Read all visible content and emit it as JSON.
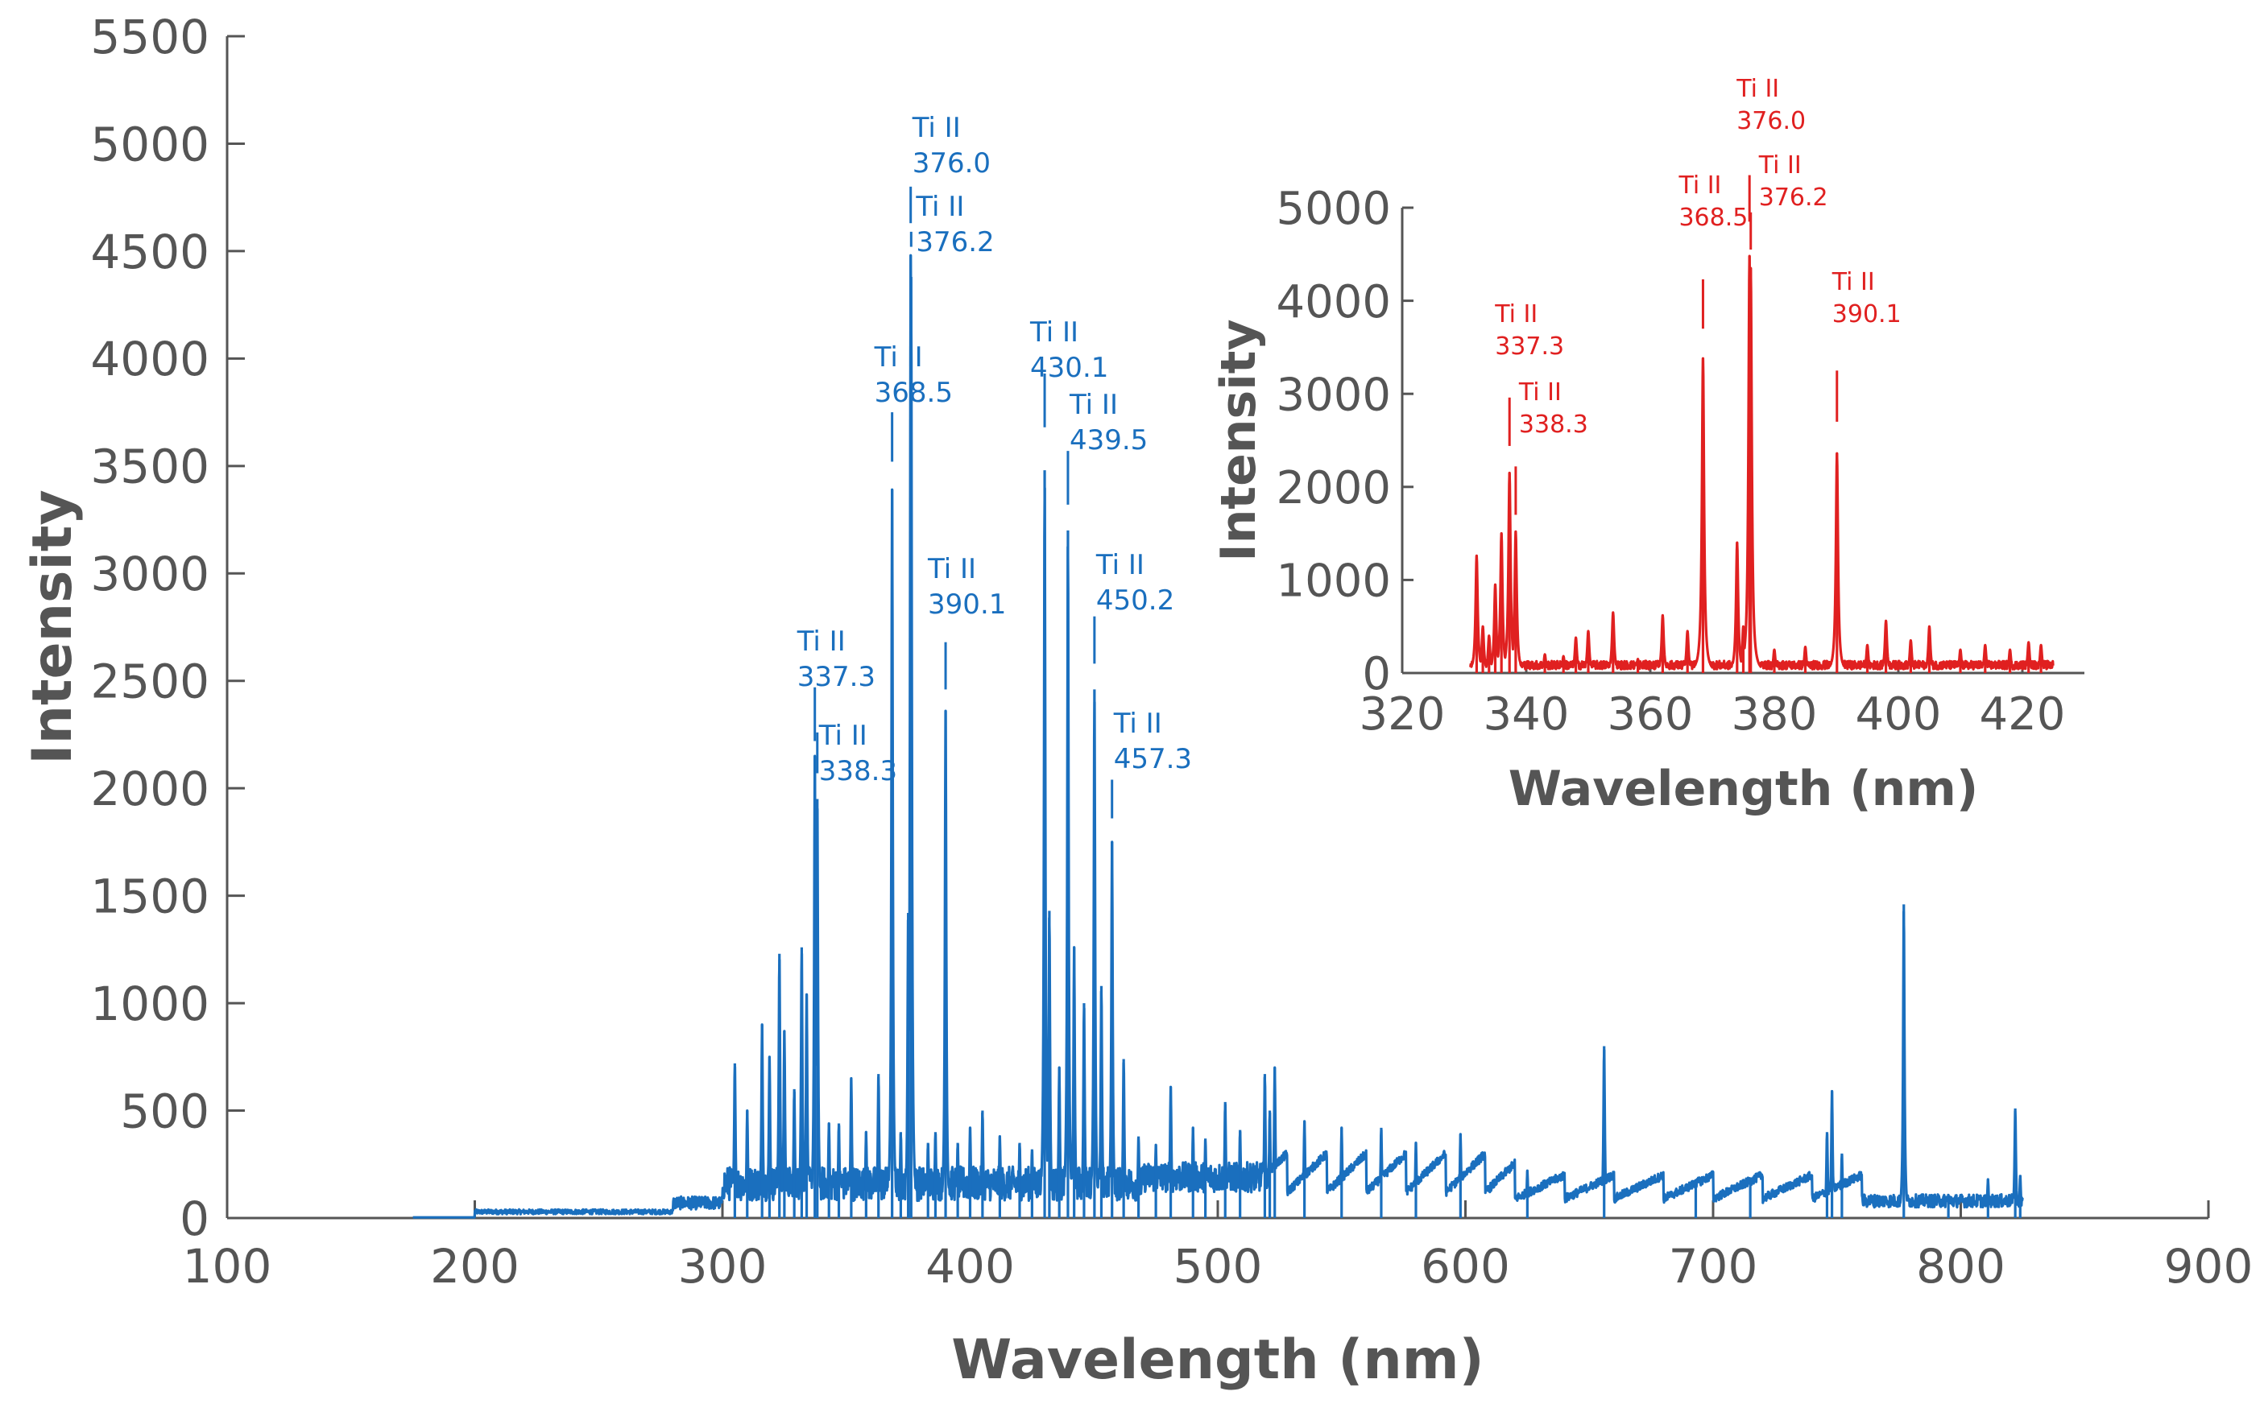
{
  "chart_data": [
    {
      "id": "main",
      "type": "line",
      "title": "",
      "xlabel": "Wavelength (nm)",
      "ylabel": "Intensity",
      "xlim": [
        100,
        900
      ],
      "ylim": [
        0,
        5500
      ],
      "xticks": [
        100,
        200,
        300,
        400,
        500,
        600,
        700,
        800,
        900
      ],
      "yticks": [
        0,
        500,
        1000,
        1500,
        2000,
        2500,
        3000,
        3500,
        4000,
        4500,
        5000,
        5500
      ],
      "color": "#1a6fbe",
      "data_range": [
        175,
        825
      ],
      "peaks": [
        {
          "x": 305,
          "y": 720
        },
        {
          "x": 310,
          "y": 500
        },
        {
          "x": 316,
          "y": 900
        },
        {
          "x": 319,
          "y": 750
        },
        {
          "x": 323,
          "y": 1230
        },
        {
          "x": 325,
          "y": 870
        },
        {
          "x": 329,
          "y": 600
        },
        {
          "x": 332,
          "y": 1260
        },
        {
          "x": 334,
          "y": 1040
        },
        {
          "x": 337.3,
          "y": 2150
        },
        {
          "x": 338.3,
          "y": 1950
        },
        {
          "x": 343,
          "y": 440
        },
        {
          "x": 347,
          "y": 440
        },
        {
          "x": 352,
          "y": 650
        },
        {
          "x": 358,
          "y": 400
        },
        {
          "x": 363,
          "y": 670
        },
        {
          "x": 368.5,
          "y": 3390
        },
        {
          "x": 372,
          "y": 400
        },
        {
          "x": 375,
          "y": 1420
        },
        {
          "x": 376.0,
          "y": 4480
        },
        {
          "x": 376.2,
          "y": 4380
        },
        {
          "x": 383,
          "y": 350
        },
        {
          "x": 386,
          "y": 400
        },
        {
          "x": 390.1,
          "y": 2360
        },
        {
          "x": 395,
          "y": 350
        },
        {
          "x": 400,
          "y": 420
        },
        {
          "x": 405,
          "y": 500
        },
        {
          "x": 412,
          "y": 380
        },
        {
          "x": 420,
          "y": 350
        },
        {
          "x": 425,
          "y": 320
        },
        {
          "x": 430.1,
          "y": 3480
        },
        {
          "x": 432,
          "y": 1430
        },
        {
          "x": 436,
          "y": 700
        },
        {
          "x": 439.5,
          "y": 3200
        },
        {
          "x": 442,
          "y": 1260
        },
        {
          "x": 446,
          "y": 1000
        },
        {
          "x": 450.2,
          "y": 2460
        },
        {
          "x": 453,
          "y": 1080
        },
        {
          "x": 457.3,
          "y": 1750
        },
        {
          "x": 462,
          "y": 740
        },
        {
          "x": 468,
          "y": 380
        },
        {
          "x": 475,
          "y": 340
        },
        {
          "x": 481,
          "y": 610
        },
        {
          "x": 490,
          "y": 420
        },
        {
          "x": 495,
          "y": 370
        },
        {
          "x": 503,
          "y": 540
        },
        {
          "x": 509,
          "y": 410
        },
        {
          "x": 519,
          "y": 670
        },
        {
          "x": 521,
          "y": 500
        },
        {
          "x": 523,
          "y": 700
        },
        {
          "x": 535,
          "y": 450
        },
        {
          "x": 550,
          "y": 420
        },
        {
          "x": 566,
          "y": 420
        },
        {
          "x": 580,
          "y": 350
        },
        {
          "x": 598,
          "y": 390
        },
        {
          "x": 625,
          "y": 220
        },
        {
          "x": 656,
          "y": 800
        },
        {
          "x": 693,
          "y": 180
        },
        {
          "x": 715,
          "y": 160
        },
        {
          "x": 746,
          "y": 400
        },
        {
          "x": 748,
          "y": 590
        },
        {
          "x": 752,
          "y": 300
        },
        {
          "x": 777,
          "y": 1460
        },
        {
          "x": 795,
          "y": 110
        },
        {
          "x": 811,
          "y": 180
        },
        {
          "x": 822,
          "y": 510
        },
        {
          "x": 824,
          "y": 200
        }
      ],
      "annotations": [
        {
          "element": "Ti II",
          "line": "337.3",
          "x": 337.3
        },
        {
          "element": "Ti II",
          "line": "338.3",
          "x": 338.3
        },
        {
          "element": "Ti II",
          "line": "368.5",
          "x": 368.5
        },
        {
          "element": "Ti II",
          "line": "376.0",
          "x": 376.0
        },
        {
          "element": "Ti II",
          "line": "376.2",
          "x": 376.2
        },
        {
          "element": "Ti II",
          "line": "390.1",
          "x": 390.1
        },
        {
          "element": "Ti II",
          "line": "430.1",
          "x": 430.1
        },
        {
          "element": "Ti II",
          "line": "439.5",
          "x": 439.5
        },
        {
          "element": "Ti II",
          "line": "450.2",
          "x": 450.2
        },
        {
          "element": "Ti II",
          "line": "457.3",
          "x": 457.3
        }
      ]
    },
    {
      "id": "inset",
      "type": "line",
      "title": "",
      "xlabel": "Wavelength (nm)",
      "ylabel": "Intensity",
      "xlim": [
        320,
        430
      ],
      "ylim": [
        0,
        5000
      ],
      "xticks": [
        320,
        340,
        360,
        380,
        400,
        420
      ],
      "yticks": [
        0,
        1000,
        2000,
        3000,
        4000,
        5000
      ],
      "color": "#e02020",
      "data_range": [
        331,
        425
      ],
      "peaks": [
        {
          "x": 332,
          "y": 1260
        },
        {
          "x": 333,
          "y": 500
        },
        {
          "x": 334,
          "y": 400
        },
        {
          "x": 335,
          "y": 950
        },
        {
          "x": 336,
          "y": 1500
        },
        {
          "x": 337.3,
          "y": 2150
        },
        {
          "x": 338.3,
          "y": 1520
        },
        {
          "x": 343,
          "y": 200
        },
        {
          "x": 346,
          "y": 180
        },
        {
          "x": 348,
          "y": 380
        },
        {
          "x": 350,
          "y": 450
        },
        {
          "x": 354,
          "y": 650
        },
        {
          "x": 358,
          "y": 150
        },
        {
          "x": 362,
          "y": 620
        },
        {
          "x": 366,
          "y": 450
        },
        {
          "x": 368.5,
          "y": 3380
        },
        {
          "x": 374,
          "y": 1400
        },
        {
          "x": 375,
          "y": 500
        },
        {
          "x": 376.0,
          "y": 4480
        },
        {
          "x": 376.2,
          "y": 4350
        },
        {
          "x": 380,
          "y": 250
        },
        {
          "x": 385,
          "y": 280
        },
        {
          "x": 390.1,
          "y": 2360
        },
        {
          "x": 395,
          "y": 300
        },
        {
          "x": 398,
          "y": 560
        },
        {
          "x": 402,
          "y": 350
        },
        {
          "x": 405,
          "y": 500
        },
        {
          "x": 410,
          "y": 250
        },
        {
          "x": 414,
          "y": 300
        },
        {
          "x": 418,
          "y": 250
        },
        {
          "x": 421,
          "y": 330
        },
        {
          "x": 423,
          "y": 300
        }
      ],
      "annotations": [
        {
          "element": "Ti II",
          "line": "337.3",
          "x": 337.3
        },
        {
          "element": "Ti II",
          "line": "338.3",
          "x": 338.3
        },
        {
          "element": "Ti II",
          "line": "368.5",
          "x": 368.5
        },
        {
          "element": "Ti II",
          "line": "376.0",
          "x": 376.0
        },
        {
          "element": "Ti II",
          "line": "376.2",
          "x": 376.2
        },
        {
          "element": "Ti II",
          "line": "390.1",
          "x": 390.1
        }
      ]
    }
  ]
}
